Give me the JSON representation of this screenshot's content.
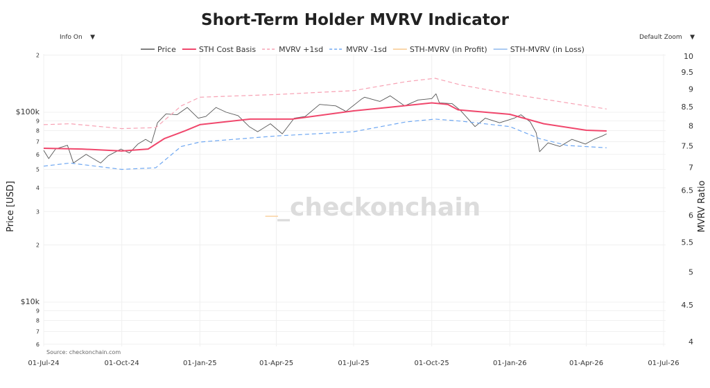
{
  "title": "Short-Term Holder MVRV Indicator",
  "controls": {
    "info": "Info On",
    "zoom": "Default Zoom",
    "arrow": "▼"
  },
  "watermark": "_checkonchain",
  "source": "Source: checkonchain.com",
  "chart_data": {
    "type": "line",
    "title": "Short-Term Holder MVRV Indicator",
    "ylabel": "Price [USD]",
    "y2label": "MVRV Ratio",
    "yscale": "log",
    "ylim": [
      5800,
      200000
    ],
    "y2scale": "log",
    "y2lim": [
      3.9,
      10
    ],
    "xlim": [
      "2024-07-01",
      "2026-07-01"
    ],
    "grid": true,
    "legend_position": "top",
    "x_ticks": [
      "01-Jul-24",
      "01-Oct-24",
      "01-Jan-25",
      "01-Apr-25",
      "01-Jul-25",
      "01-Oct-25",
      "01-Jan-26",
      "01-Apr-26",
      "01-Jul-26"
    ],
    "x_tick_dates": [
      "2024-07-01",
      "2024-10-01",
      "2025-01-01",
      "2025-04-01",
      "2025-07-01",
      "2025-10-01",
      "2026-01-01",
      "2026-04-01",
      "2026-07-01"
    ],
    "y_ticks": [
      {
        "v": 6000,
        "l": "6"
      },
      {
        "v": 7000,
        "l": "7"
      },
      {
        "v": 8000,
        "l": "8"
      },
      {
        "v": 9000,
        "l": "9"
      },
      {
        "v": 10000,
        "l": "$10k"
      },
      {
        "v": 20000,
        "l": "2"
      },
      {
        "v": 30000,
        "l": "3"
      },
      {
        "v": 40000,
        "l": "4"
      },
      {
        "v": 50000,
        "l": "5"
      },
      {
        "v": 60000,
        "l": "6"
      },
      {
        "v": 70000,
        "l": "7"
      },
      {
        "v": 80000,
        "l": "8"
      },
      {
        "v": 90000,
        "l": "9"
      },
      {
        "v": 100000,
        "l": "$100k"
      },
      {
        "v": 200000,
        "l": "2"
      }
    ],
    "y2_ticks": [
      4,
      4.5,
      5,
      5.5,
      6,
      6.5,
      7,
      7.5,
      8,
      8.5,
      9,
      9.5,
      10
    ],
    "series": [
      {
        "name": "Price",
        "color": "#555555",
        "dash": "solid",
        "axis": "left",
        "points": [
          [
            "2024-07-01",
            63000
          ],
          [
            "2024-07-07",
            57000
          ],
          [
            "2024-07-15",
            64000
          ],
          [
            "2024-07-29",
            67000
          ],
          [
            "2024-08-05",
            54000
          ],
          [
            "2024-08-20",
            60000
          ],
          [
            "2024-09-06",
            54000
          ],
          [
            "2024-09-15",
            59000
          ],
          [
            "2024-09-30",
            64000
          ],
          [
            "2024-10-10",
            61000
          ],
          [
            "2024-10-20",
            68000
          ],
          [
            "2024-10-29",
            72000
          ],
          [
            "2024-11-05",
            69000
          ],
          [
            "2024-11-12",
            88000
          ],
          [
            "2024-11-22",
            98000
          ],
          [
            "2024-12-05",
            97000
          ],
          [
            "2024-12-17",
            106000
          ],
          [
            "2024-12-30",
            93000
          ],
          [
            "2025-01-08",
            95000
          ],
          [
            "2025-01-20",
            106000
          ],
          [
            "2025-02-01",
            100000
          ],
          [
            "2025-02-15",
            96000
          ],
          [
            "2025-02-28",
            84000
          ],
          [
            "2025-03-10",
            79000
          ],
          [
            "2025-03-25",
            87000
          ],
          [
            "2025-04-08",
            77000
          ],
          [
            "2025-04-22",
            93000
          ],
          [
            "2025-05-05",
            95000
          ],
          [
            "2025-05-22",
            110000
          ],
          [
            "2025-06-10",
            108000
          ],
          [
            "2025-06-22",
            101000
          ],
          [
            "2025-07-10",
            117000
          ],
          [
            "2025-07-14",
            120000
          ],
          [
            "2025-08-01",
            114000
          ],
          [
            "2025-08-13",
            122000
          ],
          [
            "2025-08-30",
            108000
          ],
          [
            "2025-09-15",
            116000
          ],
          [
            "2025-10-01",
            118000
          ],
          [
            "2025-10-06",
            125000
          ],
          [
            "2025-10-10",
            112000
          ],
          [
            "2025-10-25",
            111000
          ],
          [
            "2025-11-04",
            102000
          ],
          [
            "2025-11-21",
            84000
          ],
          [
            "2025-12-03",
            93000
          ],
          [
            "2025-12-20",
            88000
          ],
          [
            "2026-01-06",
            93000
          ],
          [
            "2026-01-14",
            97000
          ],
          [
            "2026-01-25",
            89000
          ],
          [
            "2026-02-01",
            78000
          ],
          [
            "2026-02-05",
            62000
          ],
          [
            "2026-02-15",
            69000
          ],
          [
            "2026-03-01",
            66000
          ],
          [
            "2026-03-15",
            72000
          ],
          [
            "2026-03-31",
            68000
          ],
          [
            "2026-04-10",
            72000
          ],
          [
            "2026-04-20",
            75000
          ],
          [
            "2026-04-25",
            77000
          ]
        ]
      },
      {
        "name": "STH Cost Basis",
        "color": "#f0476c",
        "dash": "solid",
        "axis": "left",
        "points": [
          [
            "2024-07-01",
            64600
          ],
          [
            "2024-08-15",
            64000
          ],
          [
            "2024-10-01",
            62500
          ],
          [
            "2024-11-01",
            64000
          ],
          [
            "2024-11-20",
            72600
          ],
          [
            "2024-12-15",
            80000
          ],
          [
            "2025-01-01",
            86000
          ],
          [
            "2025-03-01",
            92000
          ],
          [
            "2025-04-20",
            92000
          ],
          [
            "2025-07-01",
            101700
          ],
          [
            "2025-08-10",
            106000
          ],
          [
            "2025-10-01",
            112000
          ],
          [
            "2025-10-20",
            110000
          ],
          [
            "2025-11-01",
            103000
          ],
          [
            "2026-01-01",
            97500
          ],
          [
            "2026-02-10",
            87000
          ],
          [
            "2026-04-01",
            80400
          ],
          [
            "2026-04-25",
            79700
          ]
        ]
      },
      {
        "name": "MVRV +1sd",
        "color": "#f7a1b3",
        "dash": "dash",
        "axis": "left",
        "points": [
          [
            "2024-07-01",
            86000
          ],
          [
            "2024-08-01",
            87000
          ],
          [
            "2024-10-01",
            82000
          ],
          [
            "2024-11-10",
            83000
          ],
          [
            "2024-12-10",
            108000
          ],
          [
            "2025-01-01",
            120000
          ],
          [
            "2025-04-01",
            124000
          ],
          [
            "2025-07-01",
            130000
          ],
          [
            "2025-09-01",
            145000
          ],
          [
            "2025-10-05",
            151000
          ],
          [
            "2025-11-05",
            139000
          ],
          [
            "2026-01-01",
            125000
          ],
          [
            "2026-04-01",
            108000
          ],
          [
            "2026-04-25",
            104000
          ]
        ]
      },
      {
        "name": "MVRV -1sd",
        "color": "#6ea7f2",
        "dash": "dash",
        "axis": "left",
        "points": [
          [
            "2024-07-01",
            52000
          ],
          [
            "2024-08-01",
            54000
          ],
          [
            "2024-10-01",
            50000
          ],
          [
            "2024-11-10",
            51000
          ],
          [
            "2024-12-10",
            66000
          ],
          [
            "2025-01-01",
            69700
          ],
          [
            "2025-04-01",
            75000
          ],
          [
            "2025-07-01",
            79000
          ],
          [
            "2025-09-01",
            89000
          ],
          [
            "2025-10-05",
            92000
          ],
          [
            "2025-11-05",
            89700
          ],
          [
            "2026-01-01",
            84000
          ],
          [
            "2026-02-05",
            72600
          ],
          [
            "2026-03-10",
            66800
          ],
          [
            "2026-04-25",
            65000
          ]
        ]
      },
      {
        "name": "STH-MVRV (in Profit)",
        "color": "#f9c88d",
        "dash": "solid",
        "axis": "right",
        "points": [
          [
            "2025-03-19",
            5.98
          ],
          [
            "2025-04-03",
            5.98
          ]
        ]
      },
      {
        "name": "STH-MVRV (in Loss)",
        "color": "#8fb8ee",
        "dash": "solid",
        "axis": "right",
        "points": []
      }
    ]
  }
}
